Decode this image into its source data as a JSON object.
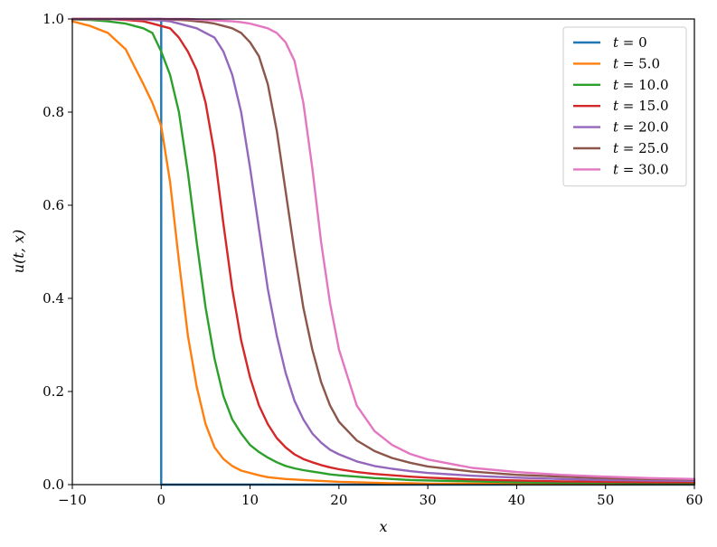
{
  "chart_data": {
    "type": "line",
    "xlabel": "x",
    "ylabel": "u(t, x)",
    "xlim": [
      -10,
      60
    ],
    "ylim": [
      0,
      1
    ],
    "x_ticks": [
      -10,
      0,
      10,
      20,
      30,
      40,
      50,
      60
    ],
    "x_tick_labels": [
      "−10",
      "0",
      "10",
      "20",
      "30",
      "40",
      "50",
      "60"
    ],
    "y_ticks": [
      0,
      0.2,
      0.4,
      0.6,
      0.8,
      1.0
    ],
    "y_tick_labels": [
      "0.0",
      "0.2",
      "0.4",
      "0.6",
      "0.8",
      "1.0"
    ],
    "grid": false,
    "legend_position": "top-right",
    "x": [
      -10,
      -8,
      -6,
      -4,
      -2,
      -1,
      0,
      1,
      2,
      3,
      4,
      5,
      6,
      7,
      8,
      9,
      10,
      11,
      12,
      13,
      14,
      15,
      16,
      17,
      18,
      19,
      20,
      22,
      24,
      26,
      28,
      30,
      35,
      40,
      45,
      50,
      55,
      60
    ],
    "series": [
      {
        "name": "t = 0",
        "label_t": "t",
        "label_val": "0",
        "color": "#1f77b4",
        "values": [
          1,
          1,
          1,
          1,
          1,
          1,
          0,
          0,
          0,
          0,
          0,
          0,
          0,
          0,
          0,
          0,
          0,
          0,
          0,
          0,
          0,
          0,
          0,
          0,
          0,
          0,
          0,
          0,
          0,
          0,
          0,
          0,
          0,
          0,
          0,
          0,
          0,
          0
        ]
      },
      {
        "name": "t = 5.0",
        "label_t": "t",
        "label_val": "5.0",
        "color": "#ff7f0e",
        "values": [
          0.995,
          0.985,
          0.97,
          0.935,
          0.86,
          0.82,
          0.77,
          0.65,
          0.48,
          0.32,
          0.21,
          0.13,
          0.08,
          0.055,
          0.04,
          0.03,
          0.025,
          0.02,
          0.016,
          0.014,
          0.012,
          0.011,
          0.01,
          0.009,
          0.008,
          0.007,
          0.006,
          0.005,
          0.004,
          0.003,
          0.003,
          0.002,
          0.002,
          0.001,
          0.001,
          0.001,
          0.001,
          0.001
        ]
      },
      {
        "name": "t = 10.0",
        "label_t": "t",
        "label_val": "10.0",
        "color": "#2ca02c",
        "values": [
          0.999,
          0.998,
          0.995,
          0.99,
          0.98,
          0.97,
          0.93,
          0.88,
          0.8,
          0.67,
          0.52,
          0.38,
          0.27,
          0.19,
          0.14,
          0.11,
          0.085,
          0.07,
          0.058,
          0.048,
          0.04,
          0.035,
          0.031,
          0.028,
          0.025,
          0.022,
          0.02,
          0.017,
          0.014,
          0.012,
          0.01,
          0.009,
          0.007,
          0.005,
          0.004,
          0.004,
          0.003,
          0.003
        ]
      },
      {
        "name": "t = 15.0",
        "label_t": "t",
        "label_val": "15.0",
        "color": "#d62728",
        "values": [
          1,
          1,
          1,
          0.998,
          0.995,
          0.99,
          0.985,
          0.98,
          0.96,
          0.93,
          0.89,
          0.82,
          0.71,
          0.56,
          0.42,
          0.31,
          0.23,
          0.17,
          0.13,
          0.1,
          0.08,
          0.065,
          0.055,
          0.048,
          0.042,
          0.037,
          0.033,
          0.027,
          0.023,
          0.02,
          0.017,
          0.015,
          0.011,
          0.009,
          0.007,
          0.006,
          0.005,
          0.005
        ]
      },
      {
        "name": "t = 20.0",
        "label_t": "t",
        "label_val": "20.0",
        "color": "#9467bd",
        "values": [
          1,
          1,
          1,
          1,
          0.999,
          0.998,
          0.997,
          0.995,
          0.99,
          0.985,
          0.98,
          0.97,
          0.96,
          0.93,
          0.88,
          0.8,
          0.68,
          0.55,
          0.42,
          0.32,
          0.24,
          0.18,
          0.14,
          0.11,
          0.09,
          0.075,
          0.065,
          0.05,
          0.04,
          0.034,
          0.029,
          0.025,
          0.019,
          0.015,
          0.012,
          0.01,
          0.009,
          0.008
        ]
      },
      {
        "name": "t = 25.0",
        "label_t": "t",
        "label_val": "25.0",
        "color": "#8c564b",
        "values": [
          1,
          1,
          1,
          1,
          1,
          1,
          1,
          0.999,
          0.998,
          0.997,
          0.995,
          0.993,
          0.99,
          0.985,
          0.98,
          0.97,
          0.95,
          0.92,
          0.86,
          0.76,
          0.63,
          0.5,
          0.38,
          0.29,
          0.22,
          0.17,
          0.135,
          0.095,
          0.072,
          0.057,
          0.047,
          0.039,
          0.028,
          0.021,
          0.017,
          0.014,
          0.012,
          0.011
        ]
      },
      {
        "name": "t = 30.0",
        "label_t": "t",
        "label_val": "30.0",
        "color": "#e377c2",
        "values": [
          1,
          1,
          1,
          1,
          1,
          1,
          1,
          1,
          1,
          1,
          0.999,
          0.998,
          0.997,
          0.996,
          0.995,
          0.993,
          0.99,
          0.985,
          0.98,
          0.97,
          0.95,
          0.91,
          0.82,
          0.68,
          0.52,
          0.39,
          0.29,
          0.17,
          0.115,
          0.085,
          0.066,
          0.054,
          0.036,
          0.027,
          0.021,
          0.017,
          0.014,
          0.012
        ]
      }
    ]
  }
}
